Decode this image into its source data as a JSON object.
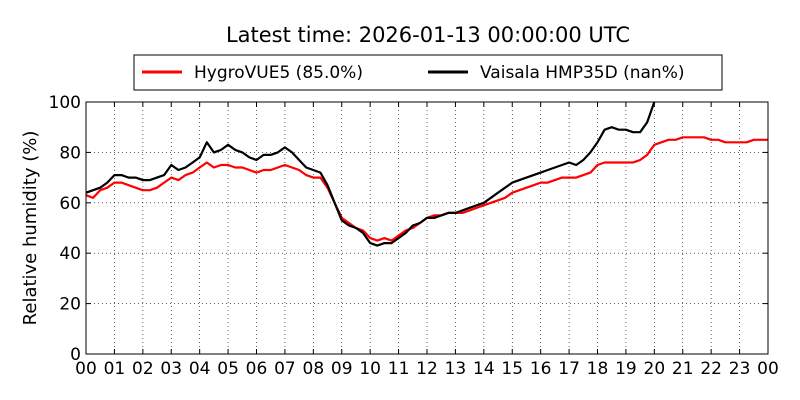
{
  "chart_data": {
    "type": "line",
    "title": "Latest time: 2026-01-13 00:00:00 UTC",
    "ylabel": "Relative humidity (%)",
    "xlabel": "",
    "ylim": [
      0,
      100
    ],
    "xlim": [
      0,
      24
    ],
    "yticks": [
      0,
      20,
      40,
      60,
      80,
      100
    ],
    "xticks": [
      0,
      1,
      2,
      3,
      4,
      5,
      6,
      7,
      8,
      9,
      10,
      11,
      12,
      13,
      14,
      15,
      16,
      17,
      18,
      19,
      20,
      21,
      22,
      23,
      24
    ],
    "xtick_labels": [
      "00",
      "01",
      "02",
      "03",
      "04",
      "05",
      "06",
      "07",
      "08",
      "09",
      "10",
      "11",
      "12",
      "13",
      "14",
      "15",
      "16",
      "17",
      "18",
      "19",
      "20",
      "21",
      "22",
      "23",
      "00"
    ],
    "grid": true,
    "legend_placement": "top",
    "series": [
      {
        "name": "HygroVUE5 (85.0%)",
        "color": "#ff0000",
        "points": [
          [
            0.0,
            63
          ],
          [
            0.25,
            62
          ],
          [
            0.5,
            65
          ],
          [
            0.75,
            66
          ],
          [
            1.0,
            68
          ],
          [
            1.25,
            68
          ],
          [
            1.5,
            67
          ],
          [
            1.75,
            66
          ],
          [
            2.0,
            65
          ],
          [
            2.25,
            65
          ],
          [
            2.5,
            66
          ],
          [
            2.75,
            68
          ],
          [
            3.0,
            70
          ],
          [
            3.25,
            69
          ],
          [
            3.5,
            71
          ],
          [
            3.75,
            72
          ],
          [
            4.0,
            74
          ],
          [
            4.25,
            76
          ],
          [
            4.5,
            74
          ],
          [
            4.75,
            75
          ],
          [
            5.0,
            75
          ],
          [
            5.25,
            74
          ],
          [
            5.5,
            74
          ],
          [
            5.75,
            73
          ],
          [
            6.0,
            72
          ],
          [
            6.25,
            73
          ],
          [
            6.5,
            73
          ],
          [
            6.75,
            74
          ],
          [
            7.0,
            75
          ],
          [
            7.25,
            74
          ],
          [
            7.5,
            73
          ],
          [
            7.75,
            71
          ],
          [
            8.0,
            70
          ],
          [
            8.25,
            70
          ],
          [
            8.5,
            66
          ],
          [
            8.75,
            60
          ],
          [
            9.0,
            54
          ],
          [
            9.25,
            52
          ],
          [
            9.5,
            50
          ],
          [
            9.75,
            49
          ],
          [
            10.0,
            46
          ],
          [
            10.25,
            45
          ],
          [
            10.5,
            46
          ],
          [
            10.75,
            45
          ],
          [
            11.0,
            47
          ],
          [
            11.25,
            49
          ],
          [
            11.5,
            50
          ],
          [
            11.75,
            52
          ],
          [
            12.0,
            54
          ],
          [
            12.25,
            55
          ],
          [
            12.5,
            55
          ],
          [
            12.75,
            56
          ],
          [
            13.0,
            56
          ],
          [
            13.25,
            56
          ],
          [
            13.5,
            57
          ],
          [
            13.75,
            58
          ],
          [
            14.0,
            59
          ],
          [
            14.25,
            60
          ],
          [
            14.5,
            61
          ],
          [
            14.75,
            62
          ],
          [
            15.0,
            64
          ],
          [
            15.25,
            65
          ],
          [
            15.5,
            66
          ],
          [
            15.75,
            67
          ],
          [
            16.0,
            68
          ],
          [
            16.25,
            68
          ],
          [
            16.5,
            69
          ],
          [
            16.75,
            70
          ],
          [
            17.0,
            70
          ],
          [
            17.25,
            70
          ],
          [
            17.5,
            71
          ],
          [
            17.75,
            72
          ],
          [
            18.0,
            75
          ],
          [
            18.25,
            76
          ],
          [
            18.5,
            76
          ],
          [
            18.75,
            76
          ],
          [
            19.0,
            76
          ],
          [
            19.25,
            76
          ],
          [
            19.5,
            77
          ],
          [
            19.75,
            79
          ],
          [
            20.0,
            83
          ],
          [
            20.25,
            84
          ],
          [
            20.5,
            85
          ],
          [
            20.75,
            85
          ],
          [
            21.0,
            86
          ],
          [
            21.25,
            86
          ],
          [
            21.5,
            86
          ],
          [
            21.75,
            86
          ],
          [
            22.0,
            85
          ],
          [
            22.25,
            85
          ],
          [
            22.5,
            84
          ],
          [
            22.75,
            84
          ],
          [
            23.0,
            84
          ],
          [
            23.25,
            84
          ],
          [
            23.5,
            85
          ],
          [
            23.75,
            85
          ],
          [
            24.0,
            85
          ]
        ]
      },
      {
        "name": "Vaisala HMP35D (nan%)",
        "color": "#000000",
        "points": [
          [
            0.0,
            64
          ],
          [
            0.25,
            65
          ],
          [
            0.5,
            66
          ],
          [
            0.75,
            68
          ],
          [
            1.0,
            71
          ],
          [
            1.25,
            71
          ],
          [
            1.5,
            70
          ],
          [
            1.75,
            70
          ],
          [
            2.0,
            69
          ],
          [
            2.25,
            69
          ],
          [
            2.5,
            70
          ],
          [
            2.75,
            71
          ],
          [
            3.0,
            75
          ],
          [
            3.25,
            73
          ],
          [
            3.5,
            74
          ],
          [
            3.75,
            76
          ],
          [
            4.0,
            78
          ],
          [
            4.25,
            84
          ],
          [
            4.5,
            80
          ],
          [
            4.75,
            81
          ],
          [
            5.0,
            83
          ],
          [
            5.25,
            81
          ],
          [
            5.5,
            80
          ],
          [
            5.75,
            78
          ],
          [
            6.0,
            77
          ],
          [
            6.25,
            79
          ],
          [
            6.5,
            79
          ],
          [
            6.75,
            80
          ],
          [
            7.0,
            82
          ],
          [
            7.25,
            80
          ],
          [
            7.5,
            77
          ],
          [
            7.75,
            74
          ],
          [
            8.0,
            73
          ],
          [
            8.25,
            72
          ],
          [
            8.5,
            67
          ],
          [
            8.75,
            60
          ],
          [
            9.0,
            53
          ],
          [
            9.25,
            51
          ],
          [
            9.5,
            50
          ],
          [
            9.75,
            48
          ],
          [
            10.0,
            44
          ],
          [
            10.25,
            43
          ],
          [
            10.5,
            44
          ],
          [
            10.75,
            44
          ],
          [
            11.0,
            46
          ],
          [
            11.25,
            48
          ],
          [
            11.5,
            51
          ],
          [
            11.75,
            52
          ],
          [
            12.0,
            54
          ],
          [
            12.25,
            54
          ],
          [
            12.5,
            55
          ],
          [
            12.75,
            56
          ],
          [
            13.0,
            56
          ],
          [
            13.25,
            57
          ],
          [
            13.5,
            58
          ],
          [
            13.75,
            59
          ],
          [
            14.0,
            60
          ],
          [
            14.25,
            62
          ],
          [
            14.5,
            64
          ],
          [
            14.75,
            66
          ],
          [
            15.0,
            68
          ],
          [
            15.25,
            69
          ],
          [
            15.5,
            70
          ],
          [
            15.75,
            71
          ],
          [
            16.0,
            72
          ],
          [
            16.25,
            73
          ],
          [
            16.5,
            74
          ],
          [
            16.75,
            75
          ],
          [
            17.0,
            76
          ],
          [
            17.25,
            75
          ],
          [
            17.5,
            77
          ],
          [
            17.75,
            80
          ],
          [
            18.0,
            84
          ],
          [
            18.25,
            89
          ],
          [
            18.5,
            90
          ],
          [
            18.75,
            89
          ],
          [
            19.0,
            89
          ],
          [
            19.25,
            88
          ],
          [
            19.5,
            88
          ],
          [
            19.75,
            92
          ],
          [
            20.0,
            100
          ]
        ]
      }
    ]
  }
}
